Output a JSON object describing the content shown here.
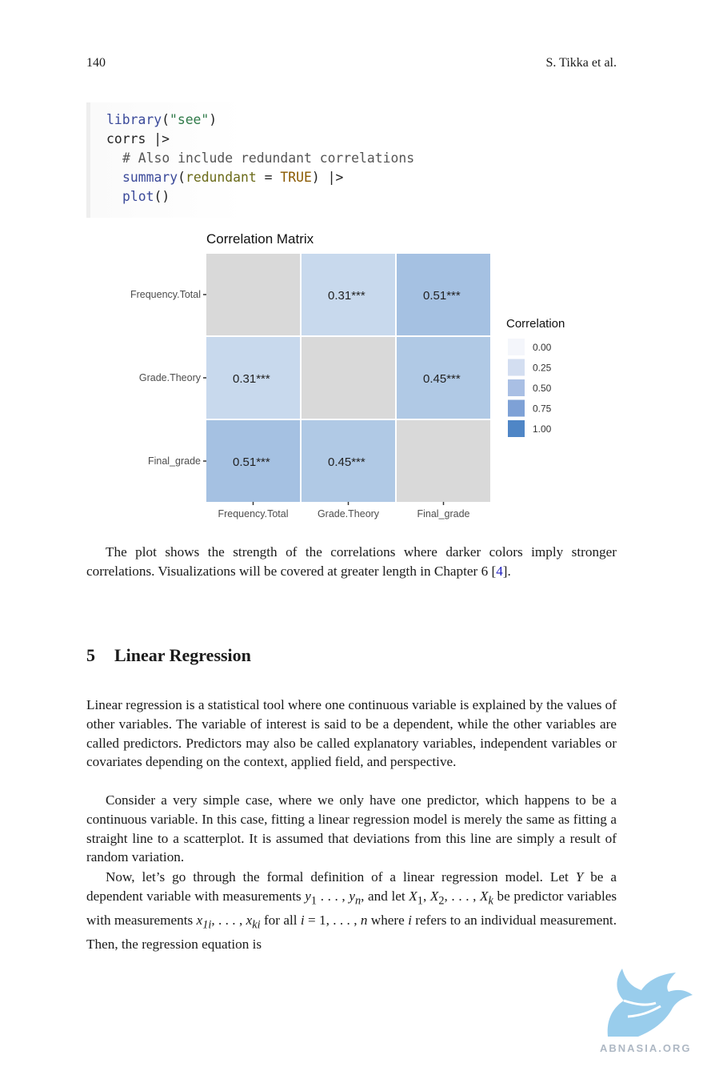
{
  "header": {
    "page_number": "140",
    "authors": "S. Tikka et al."
  },
  "code_lines": [
    {
      "fn": "library",
      "open": "(",
      "str": "\"see\"",
      "close": ")"
    },
    {
      "text": "corrs |>"
    },
    {
      "comment": "# Also include redundant correlations"
    },
    {
      "fn": "summary",
      "open": "(",
      "arg": "redundant",
      "eq": " = ",
      "kw": "TRUE",
      "close": ") |>"
    },
    {
      "fn": "plot",
      "parens": "()"
    }
  ],
  "chart_data": {
    "type": "heatmap",
    "title": "Correlation Matrix",
    "x_categories": [
      "Frequency.Total",
      "Grade.Theory",
      "Final_grade"
    ],
    "y_categories": [
      "Frequency.Total",
      "Grade.Theory",
      "Final_grade"
    ],
    "cells": [
      {
        "row": 0,
        "col": 0,
        "value": null,
        "label": ""
      },
      {
        "row": 0,
        "col": 1,
        "value": 0.31,
        "label": "0.31***"
      },
      {
        "row": 0,
        "col": 2,
        "value": 0.51,
        "label": "0.51***"
      },
      {
        "row": 1,
        "col": 0,
        "value": 0.31,
        "label": "0.31***"
      },
      {
        "row": 1,
        "col": 1,
        "value": null,
        "label": ""
      },
      {
        "row": 1,
        "col": 2,
        "value": 0.45,
        "label": "0.45***"
      },
      {
        "row": 2,
        "col": 0,
        "value": 0.51,
        "label": "0.51***"
      },
      {
        "row": 2,
        "col": 1,
        "value": 0.45,
        "label": "0.45***"
      },
      {
        "row": 2,
        "col": 2,
        "value": null,
        "label": ""
      }
    ],
    "legend": {
      "title": "Correlation",
      "placement": "right",
      "entries": [
        {
          "label": "0.00",
          "color": "#f4f6fb"
        },
        {
          "label": "0.25",
          "color": "#d3def1"
        },
        {
          "label": "0.50",
          "color": "#a9bfe4"
        },
        {
          "label": "0.75",
          "color": "#7ea1d6"
        },
        {
          "label": "1.00",
          "color": "#4f86c6"
        }
      ]
    },
    "colors": {
      "na_cell": "#d9d9d9",
      "scale_low": "#ffffff",
      "scale_high": "#4f86c6"
    }
  },
  "paragraph_after_plot": {
    "text": "The plot shows the strength of the correlations where darker colors imply stronger correlations. Visualizations will be covered at greater length in Chapter 6 [",
    "ref": "4",
    "end": "]."
  },
  "section": {
    "number": "5",
    "title": "Linear Regression"
  },
  "body_paragraphs": [
    "Linear regression is a statistical tool where one continuous variable is explained by the values of other variables. The variable of interest is said to be a dependent, while the other variables are called predictors. Predictors may also be called explanatory variables, independent variables or covariates depending on the context, applied field, and perspective.",
    "Consider a very simple case, where we only have one predictor, which happens to be a continuous variable. In this case, fitting a linear regression model is merely the same as fitting a straight line to a scatterplot. It is assumed that deviations from this line are simply a result of random variation."
  ],
  "formal_paragraph": {
    "p1": "Now, let’s go through the formal definition of a linear regression model. Let ",
    "Y": "Y",
    "p2": " be a dependent variable with measurements ",
    "y_seq": "y",
    "y_seq_mid": "1",
    "y_seq_dots": " . . . , ",
    "y_n": "n",
    "p3": ", and let ",
    "X_seq": "X",
    "X_sub1": "1",
    "X_sep": ", ",
    "X_sub2": "2",
    "X_dots": ", . . . , ",
    "X_subk": "k",
    "p4": " be predictor variables with measurements ",
    "x_sub1i": "1i",
    "x_dots": ", . . . , ",
    "x_subki": "ki",
    "p5": " for all ",
    "i_eq": "i",
    "eq": " = 1, . . . , ",
    "n": "n",
    "p6": " where ",
    "i_ref": "i",
    "p7": " refers to an individual measurement. Then, the regression equation is"
  },
  "watermark": {
    "text": "ABNASIA.ORG"
  }
}
